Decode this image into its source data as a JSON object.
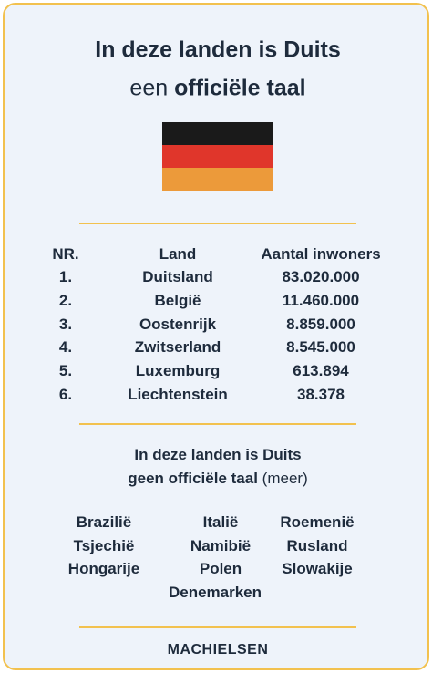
{
  "header": {
    "title_line1": "In deze landen is Duits",
    "title_line2_prefix": "een",
    "title_line2_emphasis": "officiële taal"
  },
  "table": {
    "columns": [
      "NR.",
      "Land",
      "Aantal inwoners"
    ],
    "rows": [
      [
        "1.",
        "Duitsland",
        "83.020.000"
      ],
      [
        "2.",
        "België",
        "11.460.000"
      ],
      [
        "3.",
        "Oostenrijk",
        "8.859.000"
      ],
      [
        "4.",
        "Zwitserland",
        "8.545.000"
      ],
      [
        "5.",
        "Luxemburg",
        "613.894"
      ],
      [
        "6.",
        "Liechtenstein",
        "38.378"
      ]
    ]
  },
  "section": {
    "line1": "In deze landen is Duits",
    "line2_emphasis": "geen officiële taal",
    "line2_suffix": "(meer)"
  },
  "countries": [
    "Brazilië",
    "Italië",
    "Roemenië",
    "Tsjechië",
    "Namibië",
    "Rusland",
    "Hongarije",
    "Polen",
    "Slowakije",
    "Denemarken"
  ],
  "footer": {
    "logo": "MACHIELSEN"
  }
}
